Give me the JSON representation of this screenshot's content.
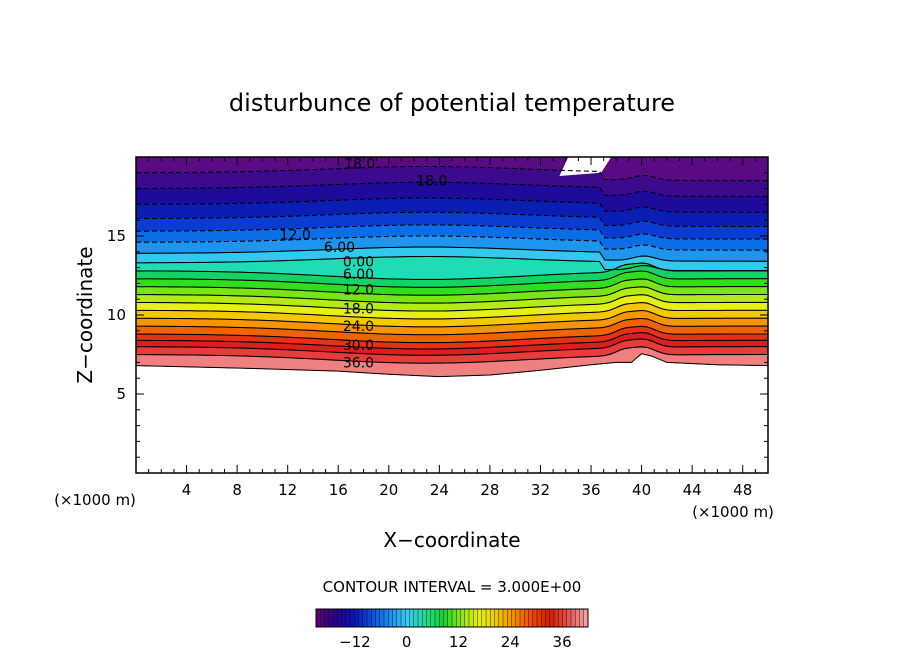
{
  "chart_data": {
    "type": "heatmap",
    "title": "disturbunce of potential temperature",
    "xlabel": "X−coordinate",
    "ylabel": "Z−coordinate",
    "x_unit": "(×1000 m)",
    "y_unit": "(×1000 m)",
    "xlim": [
      0,
      50
    ],
    "ylim": [
      0,
      20
    ],
    "x_ticks": [
      4,
      8,
      12,
      16,
      20,
      24,
      28,
      32,
      36,
      40,
      44,
      48
    ],
    "x_tick_labels": [
      "4",
      "8",
      "12",
      "16",
      "20",
      "24",
      "28",
      "32",
      "36",
      "40",
      "44",
      "48"
    ],
    "y_ticks": [
      5,
      10,
      15
    ],
    "y_tick_labels": [
      "5",
      "10",
      "15"
    ],
    "contour_interval_text": "CONTOUR INTERVAL = 3.000E+00",
    "contour_interval": 3,
    "colorbar": {
      "min": -21,
      "max": 42,
      "ticks": [
        -12,
        0,
        12,
        24,
        36
      ],
      "tick_labels": [
        "−12",
        "0",
        "12",
        "24",
        "36"
      ],
      "colors": [
        "#5a0070",
        "#28008c",
        "#0a14b4",
        "#0a50d8",
        "#1e8cf0",
        "#3cc8f0",
        "#1edc96",
        "#14d232",
        "#8ce614",
        "#e6f014",
        "#f0c800",
        "#f58c00",
        "#f04600",
        "#d21e00",
        "#e65050",
        "#f0a0a0"
      ]
    },
    "contour_labels": [
      {
        "text": "18.0",
        "x": 17.7,
        "z": 19.6
      },
      {
        "text": "18.0",
        "x": 23.4,
        "z": 18.5
      },
      {
        "text": "12.0",
        "x": 12.6,
        "z": 15.1
      },
      {
        "text": "6.00",
        "x": 16.1,
        "z": 14.3
      },
      {
        "text": "0.00",
        "x": 17.6,
        "z": 13.4
      },
      {
        "text": "6.00",
        "x": 17.6,
        "z": 12.6
      },
      {
        "text": "12.0",
        "x": 17.6,
        "z": 11.6
      },
      {
        "text": "18.0",
        "x": 17.6,
        "z": 10.4
      },
      {
        "text": "24.0",
        "x": 17.6,
        "z": 9.3
      },
      {
        "text": "30.0",
        "x": 17.6,
        "z": 8.1
      },
      {
        "text": "36.0",
        "x": 17.6,
        "z": 7.0
      }
    ],
    "bottom_boundary_z": [
      [
        0,
        6.8
      ],
      [
        5,
        6.7
      ],
      [
        10,
        6.6
      ],
      [
        16,
        6.45
      ],
      [
        20,
        6.25
      ],
      [
        24,
        6.1
      ],
      [
        28,
        6.2
      ],
      [
        32,
        6.5
      ],
      [
        36,
        6.85
      ],
      [
        38,
        7.0
      ],
      [
        39.2,
        7.0
      ],
      [
        40,
        7.55
      ],
      [
        40.8,
        7.4
      ],
      [
        42,
        7.0
      ],
      [
        46,
        6.85
      ],
      [
        50,
        6.8
      ]
    ],
    "bands": [
      {
        "top_z": 7.5,
        "color": "#f08080"
      },
      {
        "top_z": 8.0,
        "color": "#e63c3c"
      },
      {
        "top_z": 8.4,
        "color": "#dc1e1e"
      },
      {
        "top_z": 8.8,
        "color": "#e63214"
      },
      {
        "top_z": 9.3,
        "color": "#f06400"
      },
      {
        "top_z": 9.8,
        "color": "#f59600"
      },
      {
        "top_z": 10.3,
        "color": "#f5c800"
      },
      {
        "top_z": 10.8,
        "color": "#e6f014"
      },
      {
        "top_z": 11.3,
        "color": "#b4eb14"
      },
      {
        "top_z": 11.8,
        "color": "#78e614"
      },
      {
        "top_z": 12.3,
        "color": "#32dc1e"
      },
      {
        "top_z": 12.8,
        "color": "#14d264"
      },
      {
        "top_z": 13.3,
        "color": "#1edcb4"
      },
      {
        "top_z": 13.9,
        "color": "#32c8f0"
      },
      {
        "top_z": 14.6,
        "color": "#1e96f0"
      },
      {
        "top_z": 15.3,
        "color": "#0a6ee6"
      },
      {
        "top_z": 16.1,
        "color": "#0a3cd2"
      },
      {
        "top_z": 17.0,
        "color": "#0a1eb4"
      },
      {
        "top_z": 18.0,
        "color": "#1e0a9b"
      },
      {
        "top_z": 19.0,
        "color": "#3c0a8c"
      },
      {
        "top_z": 20.0,
        "color": "#5a0a82"
      }
    ]
  }
}
